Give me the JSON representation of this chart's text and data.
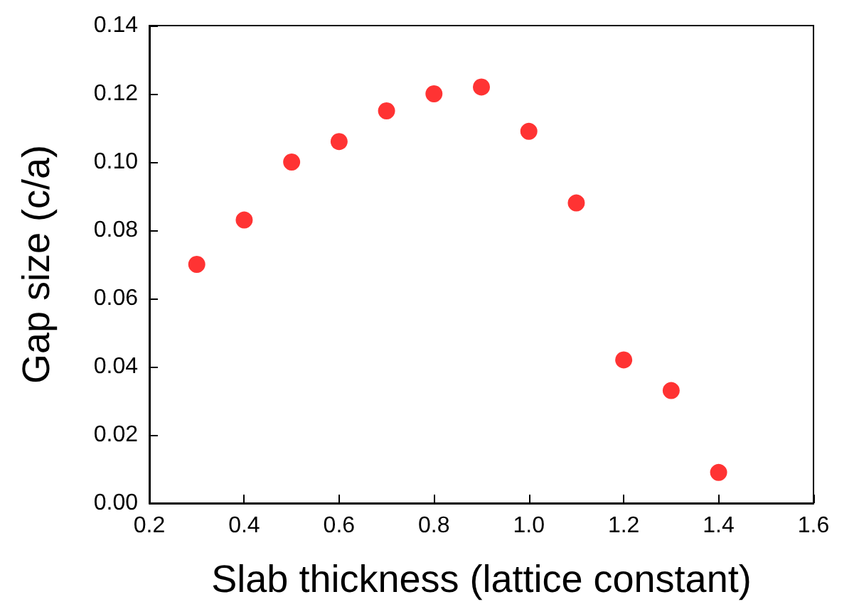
{
  "chart_data": {
    "type": "scatter",
    "xlabel": "Slab thickness (lattice constant)",
    "ylabel": "Gap size (c/a)",
    "x": [
      0.3,
      0.4,
      0.5,
      0.6,
      0.7,
      0.8,
      0.9,
      1.0,
      1.1,
      1.2,
      1.3,
      1.4
    ],
    "series": [
      {
        "color": "#ff0000",
        "values": [
          0.07,
          0.083,
          0.1,
          0.106,
          0.115,
          0.12,
          0.122,
          0.109,
          0.088,
          0.042,
          0.033,
          0.009
        ]
      }
    ],
    "xlim": [
      0.2,
      1.6
    ],
    "xticks": [
      {
        "value": 0.2,
        "label": "0.2"
      },
      {
        "value": 0.4,
        "label": "0.4"
      },
      {
        "value": 0.6,
        "label": "0.6"
      },
      {
        "value": 0.8,
        "label": "0.8"
      },
      {
        "value": 1.0,
        "label": "1.0"
      },
      {
        "value": 1.2,
        "label": "1.2"
      },
      {
        "value": 1.4,
        "label": "1.4"
      },
      {
        "value": 1.6,
        "label": "1.6"
      }
    ],
    "ylim": [
      0,
      0.14
    ],
    "yticks": [
      {
        "value": 0,
        "label": "0.00"
      },
      {
        "value": 0.02,
        "label": "0.02"
      },
      {
        "value": 0.04,
        "label": "0.04"
      },
      {
        "value": 0.06,
        "label": "0.06"
      },
      {
        "value": 0.08,
        "label": "0.08"
      },
      {
        "value": 0.1,
        "label": "0.10"
      },
      {
        "value": 0.12,
        "label": "0.12"
      },
      {
        "value": 0.14,
        "label": "0.14"
      }
    ],
    "grid": false,
    "marker": "circle"
  }
}
